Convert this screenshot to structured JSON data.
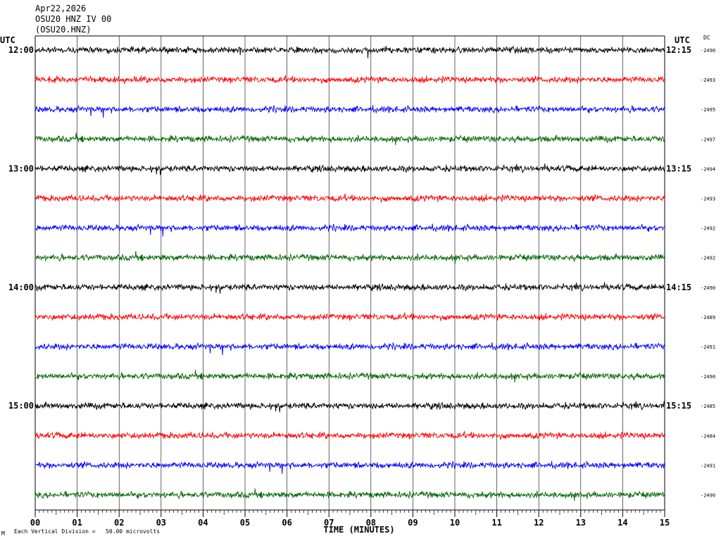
{
  "header": {
    "date": "Apr22,2026",
    "channel": "OSU20 HNZ IV 00",
    "station": "(OSU20.HNZ)"
  },
  "left_utc_label": "UTC",
  "right_utc_label": "UTC",
  "dc_label": "DC",
  "footer": {
    "scale_text": "Each Vertical Division =   50.00 microvolts"
  },
  "colors": {
    "trace_cycle": [
      "#000000",
      "#ff0000",
      "#0000ff",
      "#006600"
    ],
    "grid": "#000000",
    "background": "#ffffff"
  },
  "chart_data": {
    "type": "line",
    "title": "",
    "xlabel": "TIME (MINUTES)",
    "ylabel": "",
    "xlim": [
      0,
      15
    ],
    "x_ticks": [
      "00",
      "01",
      "02",
      "03",
      "04",
      "05",
      "06",
      "07",
      "08",
      "09",
      "10",
      "11",
      "12",
      "13",
      "14",
      "15"
    ],
    "grid": true,
    "traces": [
      {
        "left_label": "12:00",
        "right_label": "12:15",
        "dc": "-2490"
      },
      {
        "left_label": "",
        "right_label": "",
        "dc": "-2493"
      },
      {
        "left_label": "",
        "right_label": "",
        "dc": "-2495"
      },
      {
        "left_label": "",
        "right_label": "",
        "dc": "-2497"
      },
      {
        "left_label": "13:00",
        "right_label": "13:15",
        "dc": "-2494"
      },
      {
        "left_label": "",
        "right_label": "",
        "dc": "-2493"
      },
      {
        "left_label": "",
        "right_label": "",
        "dc": "-2492"
      },
      {
        "left_label": "",
        "right_label": "",
        "dc": "-2492"
      },
      {
        "left_label": "14:00",
        "right_label": "14:15",
        "dc": "-2490"
      },
      {
        "left_label": "",
        "right_label": "",
        "dc": "-2489"
      },
      {
        "left_label": "",
        "right_label": "",
        "dc": "-2491"
      },
      {
        "left_label": "",
        "right_label": "",
        "dc": "-2490"
      },
      {
        "left_label": "15:00",
        "right_label": "15:15",
        "dc": "-2485"
      },
      {
        "left_label": "",
        "right_label": "",
        "dc": "-2484"
      },
      {
        "left_label": "",
        "right_label": "",
        "dc": "-2491"
      },
      {
        "left_label": "",
        "right_label": "",
        "dc": "-2490"
      }
    ]
  }
}
